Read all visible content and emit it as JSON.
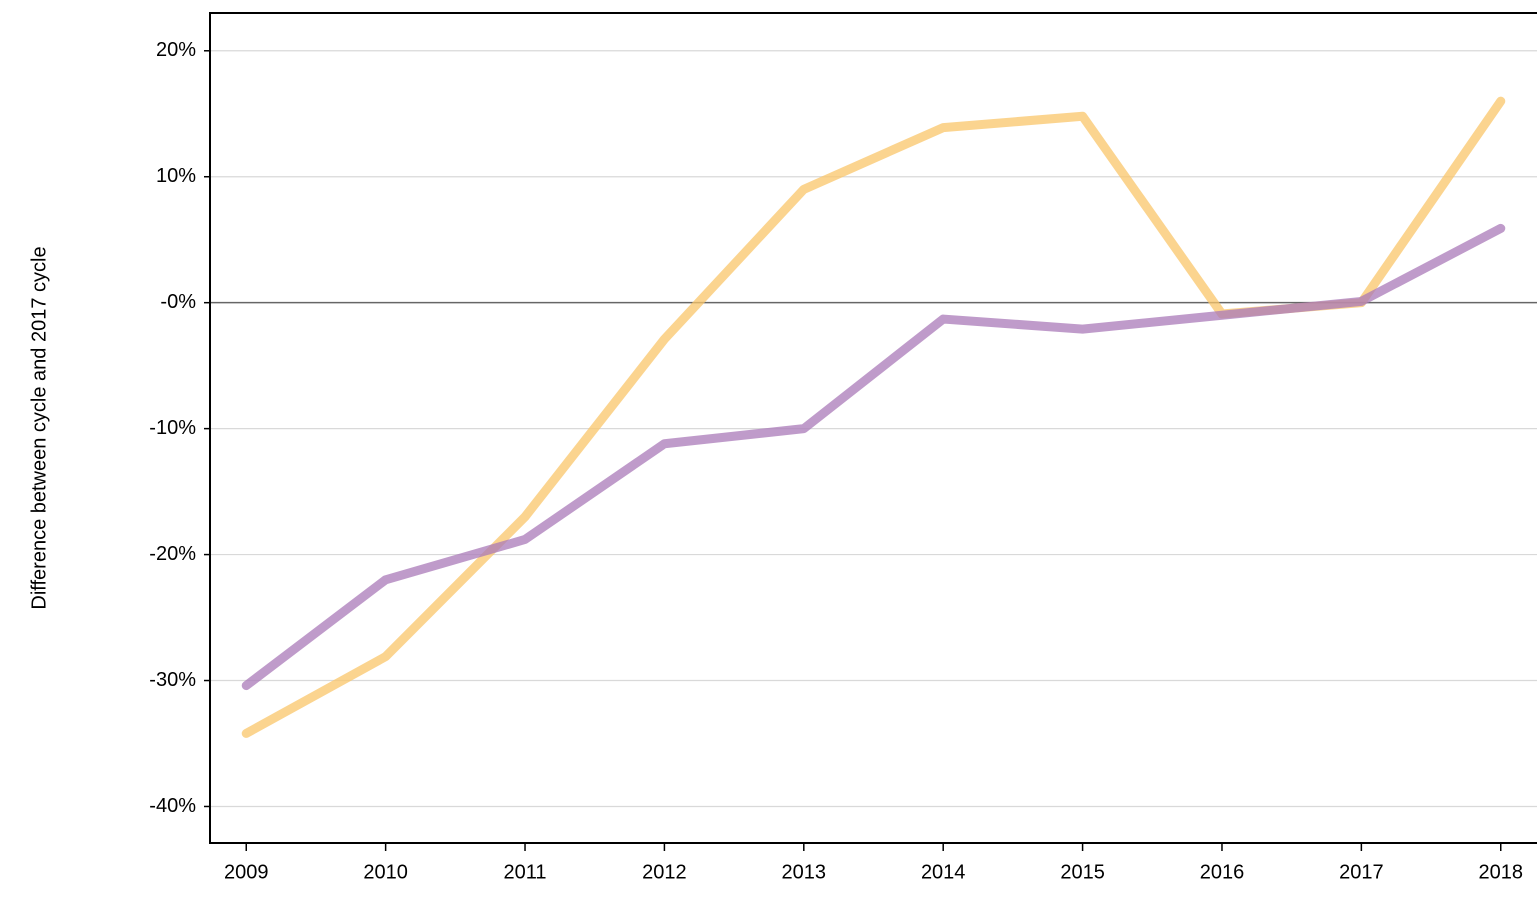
{
  "chart_data": {
    "type": "line",
    "y_label": "Difference between cycle and 2017 cycle",
    "categories": [
      "2009",
      "2010",
      "2011",
      "2012",
      "2013",
      "2014",
      "2015",
      "2016",
      "2017",
      "2018"
    ],
    "series": [
      {
        "color": "#f9c56a",
        "values": [
          -34.2,
          -28.1,
          -17.0,
          -2.9,
          9.0,
          13.9,
          14.8,
          -0.9,
          0.0,
          16.0
        ]
      },
      {
        "color": "#a97ab8",
        "values": [
          -30.4,
          -22.0,
          -18.8,
          -11.2,
          -10.0,
          -1.3,
          -2.1,
          -1.0,
          0.1,
          5.9
        ]
      }
    ],
    "ylim": [
      -42.9,
      23.0
    ],
    "yticks": [
      {
        "value": 20,
        "label": "20%"
      },
      {
        "value": 10,
        "label": "10%"
      },
      {
        "value": 0,
        "label": "-0%"
      },
      {
        "value": -10,
        "label": "-10%"
      },
      {
        "value": -20,
        "label": "-20%"
      },
      {
        "value": -30,
        "label": "-30%"
      },
      {
        "value": -40,
        "label": "-40%"
      }
    ],
    "grid": true
  }
}
